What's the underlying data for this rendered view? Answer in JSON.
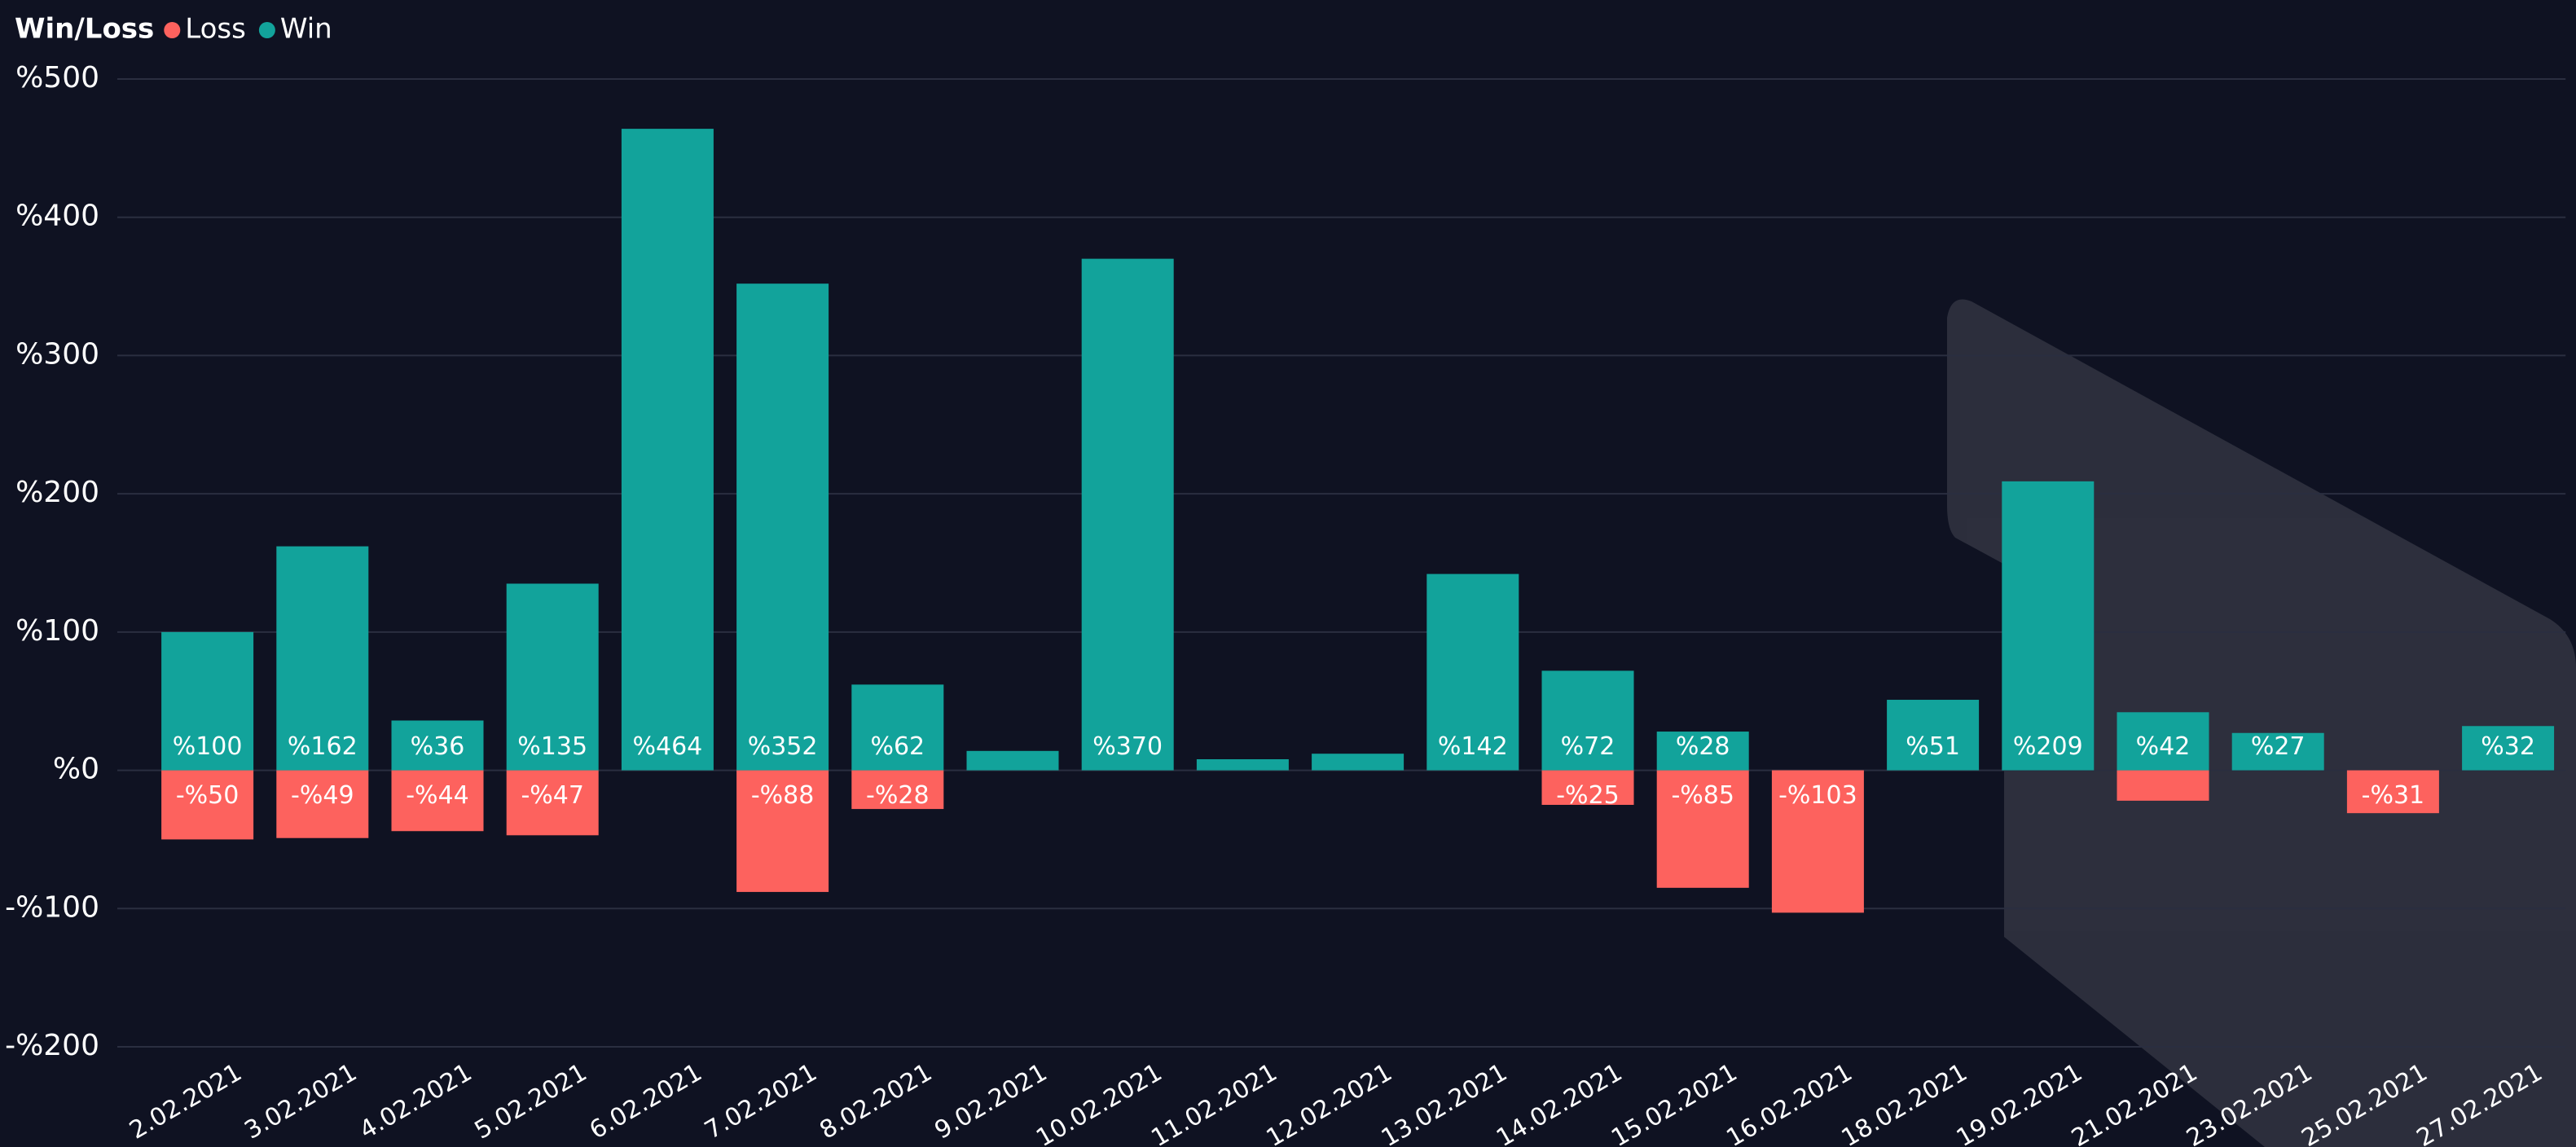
{
  "chart_data": {
    "type": "bar",
    "legend_title": "Win/Loss",
    "categories": [
      "2.02.2021",
      "3.02.2021",
      "4.02.2021",
      "5.02.2021",
      "6.02.2021",
      "7.02.2021",
      "8.02.2021",
      "9.02.2021",
      "10.02.2021",
      "11.02.2021",
      "12.02.2021",
      "13.02.2021",
      "14.02.2021",
      "15.02.2021",
      "16.02.2021",
      "18.02.2021",
      "19.02.2021",
      "21.02.2021",
      "23.02.2021",
      "25.02.2021",
      "27.02.2021"
    ],
    "series": [
      {
        "name": "Loss",
        "color": "#fd625e",
        "values": [
          -50,
          -49,
          -44,
          -47,
          null,
          -88,
          -28,
          null,
          null,
          null,
          null,
          null,
          -25,
          -85,
          -103,
          null,
          null,
          -22,
          null,
          -31,
          null
        ],
        "value_labels": [
          "-%50",
          "-%49",
          "-%44",
          "-%47",
          null,
          "-%88",
          "-%28",
          null,
          null,
          null,
          null,
          null,
          "-%25",
          "-%85",
          "-%103",
          null,
          null,
          null,
          null,
          "-%31",
          null
        ]
      },
      {
        "name": "Win",
        "color": "#12a39b",
        "values": [
          100,
          162,
          36,
          135,
          464,
          352,
          62,
          14,
          370,
          8,
          12,
          142,
          72,
          28,
          null,
          51,
          209,
          42,
          27,
          null,
          32
        ],
        "value_labels": [
          "%100",
          "%162",
          "%36",
          "%135",
          "%464",
          "%352",
          "%62",
          null,
          "%370",
          null,
          null,
          "%142",
          "%72",
          "%28",
          null,
          "%51",
          "%209",
          "%42",
          "%27",
          null,
          "%32"
        ]
      }
    ],
    "ylim": [
      -200,
      500
    ],
    "yticks": [
      {
        "value": -200,
        "label": "-%200"
      },
      {
        "value": -100,
        "label": "-%100"
      },
      {
        "value": 0,
        "label": "%0"
      },
      {
        "value": 100,
        "label": "%100"
      },
      {
        "value": 200,
        "label": "%200"
      },
      {
        "value": 300,
        "label": "%300"
      },
      {
        "value": 400,
        "label": "%400"
      },
      {
        "value": 500,
        "label": "%500"
      }
    ],
    "grid": true,
    "legend": "top-left"
  }
}
